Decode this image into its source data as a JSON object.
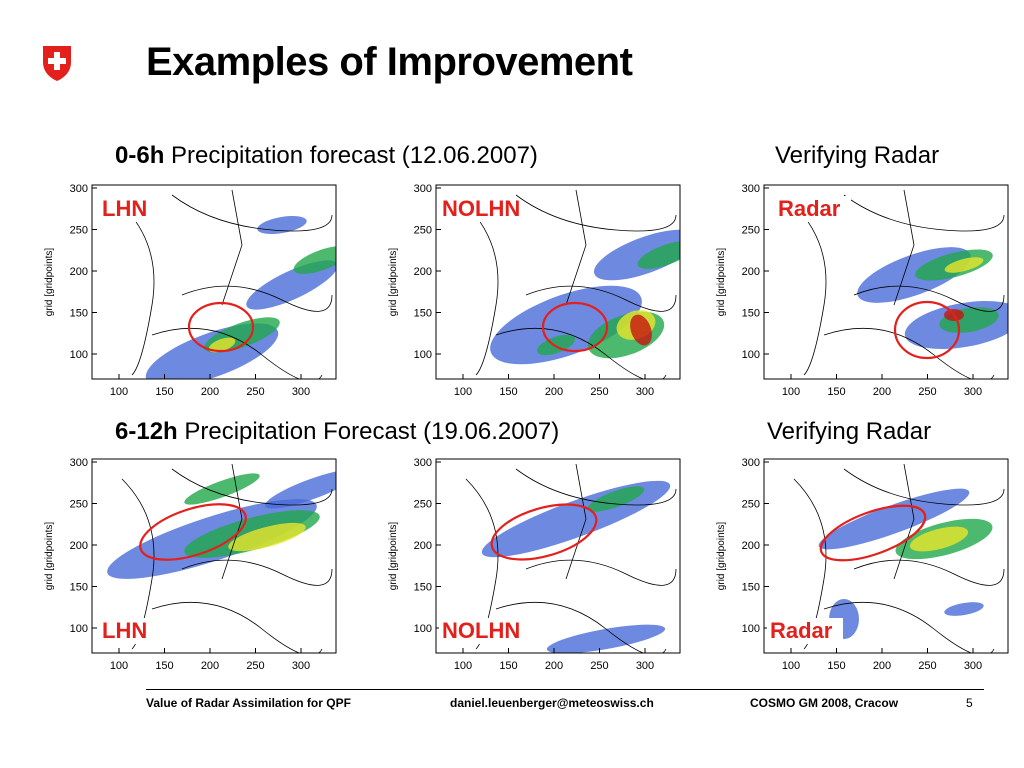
{
  "slide": {
    "title": "Examples of Improvement",
    "page_number": "5"
  },
  "rows": [
    {
      "bold": "0-6h",
      "rest": "Precipitation forecast (12.06.2007)",
      "radar_heading": "Verifying Radar"
    },
    {
      "bold": "6-12h",
      "rest": "Precipitation Forecast (19.06.2007)",
      "radar_heading": "Verifying Radar"
    }
  ],
  "axes": {
    "ylabel": "grid [gridpoints]",
    "xticks": [
      "100",
      "150",
      "200",
      "250",
      "300"
    ],
    "yticks": [
      "300",
      "250",
      "200",
      "150",
      "100"
    ]
  },
  "panels": [
    {
      "label": "LHN"
    },
    {
      "label": "NOLHN"
    },
    {
      "label": "Radar"
    },
    {
      "label": "LHN"
    },
    {
      "label": "NOLHN"
    },
    {
      "label": "Radar"
    }
  ],
  "footer": {
    "left": "Value of Radar Assimilation for QPF",
    "center": "daniel.leuenberger@meteoswiss.ch",
    "right": "COSMO GM 2008, Cracow"
  },
  "colors": {
    "accent": "#e3201b",
    "precip_light": "#4a6bd8",
    "precip_mid": "#21a84b",
    "precip_high": "#e8e62a",
    "precip_max": "#c8140f"
  }
}
